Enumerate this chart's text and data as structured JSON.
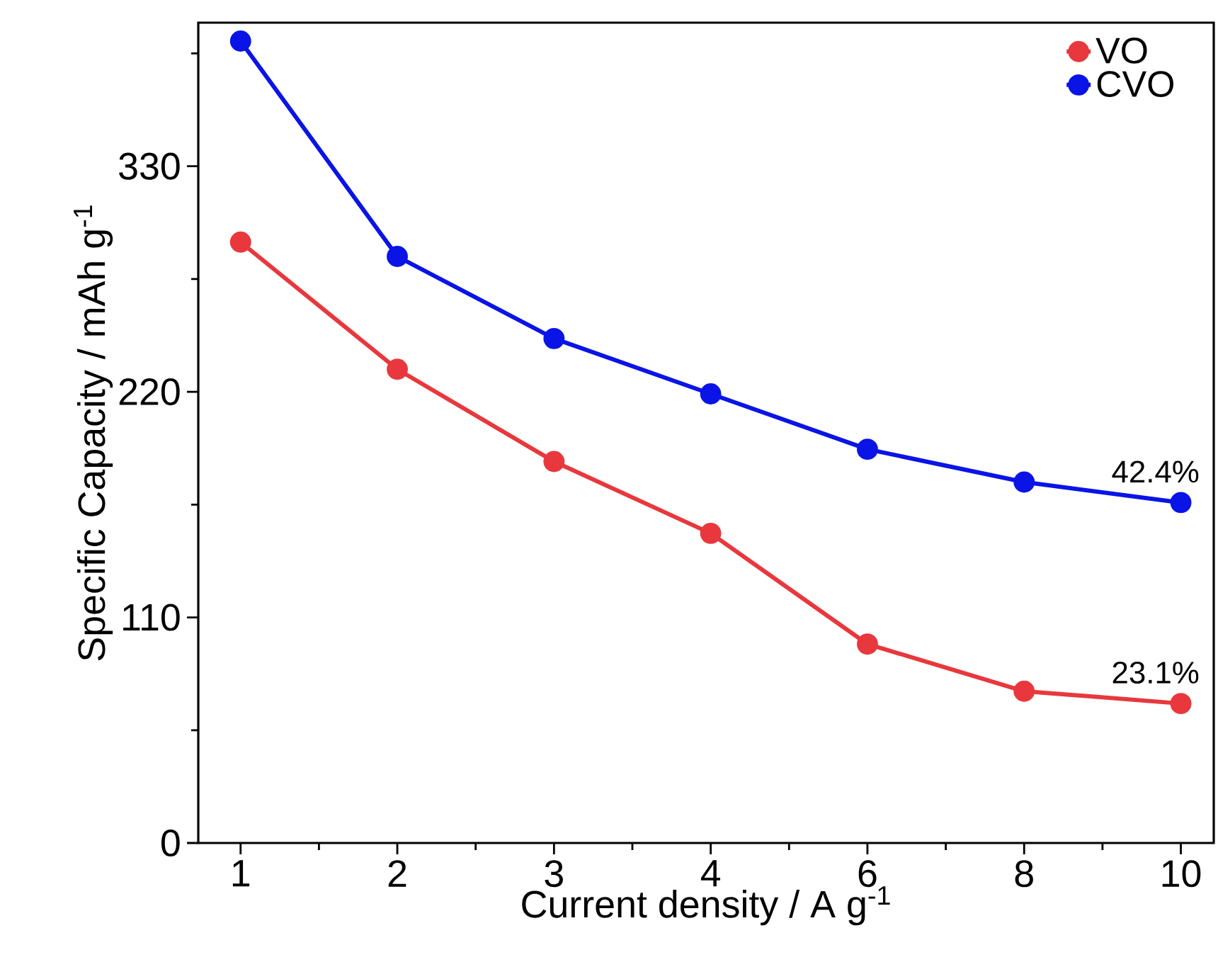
{
  "chart_data": {
    "type": "line",
    "xlabel": "Current density / A g$^{-1}$",
    "ylabel": "Specific Capacity / mAh g$^{-1}$",
    "categories": [
      "1",
      "2",
      "3",
      "4",
      "6",
      "8",
      "10"
    ],
    "series": [
      {
        "name": "VO",
        "color": "#e8383d",
        "values": [
          293,
          231,
          186,
          151,
          97,
          74,
          68
        ]
      },
      {
        "name": "CVO",
        "color": "#0a14e6",
        "values": [
          391,
          286,
          246,
          219,
          192,
          176,
          166
        ]
      }
    ],
    "ylim": [
      0,
      400
    ],
    "yticks": [
      0,
      110,
      220,
      330
    ],
    "annotations": [
      {
        "text": "42.4%",
        "x": "10",
        "y": 166
      },
      {
        "text": "23.1%",
        "x": "10",
        "y": 68
      }
    ],
    "legend": "top right",
    "marker": "circle",
    "line_style": "solid",
    "grid": false
  }
}
